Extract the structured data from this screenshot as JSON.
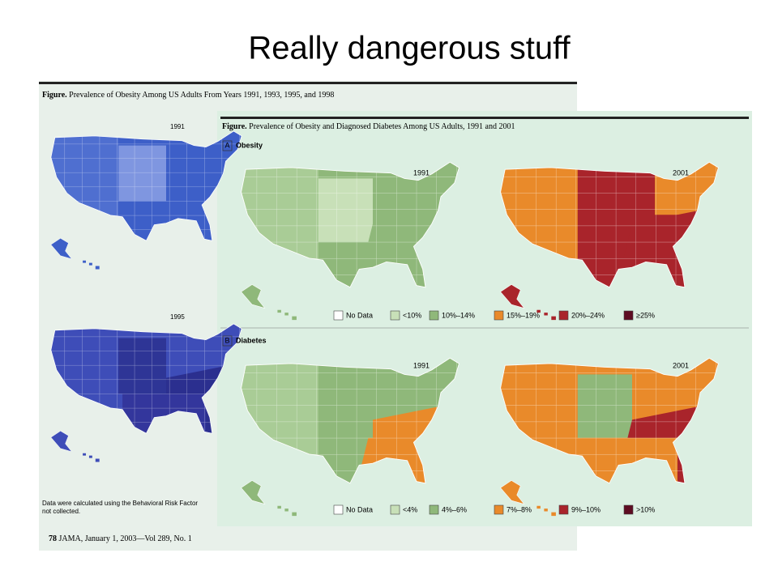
{
  "title": "Really dangerous stuff",
  "back_figure": {
    "label": "Figure.",
    "caption": "Prevalence of Obesity Among US Adults From Years 1991, 1993, 1995, and 1998",
    "maps": [
      "1991",
      "1995"
    ],
    "footnote": [
      "Data were calculated using the Behavioral Risk Factor",
      "not collected."
    ],
    "footer": {
      "page": "78",
      "citation": "JAMA, January 1, 2003—Vol 289, No. 1"
    }
  },
  "front_figure": {
    "label": "Figure.",
    "caption": "Prevalence of Obesity and Diagnosed Diabetes Among US Adults, 1991 and 2001",
    "panels": [
      {
        "letter": "A",
        "name": "Obesity",
        "years": [
          "1991",
          "2001"
        ],
        "legend": [
          {
            "label": "No Data",
            "color": "#ffffff"
          },
          {
            "label": "<10%",
            "color": "#c8e0b8"
          },
          {
            "label": "10%–14%",
            "color": "#8fb87a"
          },
          {
            "label": "15%–19%",
            "color": "#e98a2a"
          },
          {
            "label": "20%–24%",
            "color": "#a9242b"
          },
          {
            "label": "≥25%",
            "color": "#5e0c22"
          }
        ]
      },
      {
        "letter": "B",
        "name": "Diabetes",
        "years": [
          "1991",
          "2001"
        ],
        "legend": [
          {
            "label": "No Data",
            "color": "#ffffff"
          },
          {
            "label": "<4%",
            "color": "#c8e0b8"
          },
          {
            "label": "4%–6%",
            "color": "#8fb87a"
          },
          {
            "label": "7%–8%",
            "color": "#e98a2a"
          },
          {
            "label": "9%–10%",
            "color": "#a9242b"
          },
          {
            "label": ">10%",
            "color": "#5e0c22"
          }
        ]
      }
    ]
  }
}
